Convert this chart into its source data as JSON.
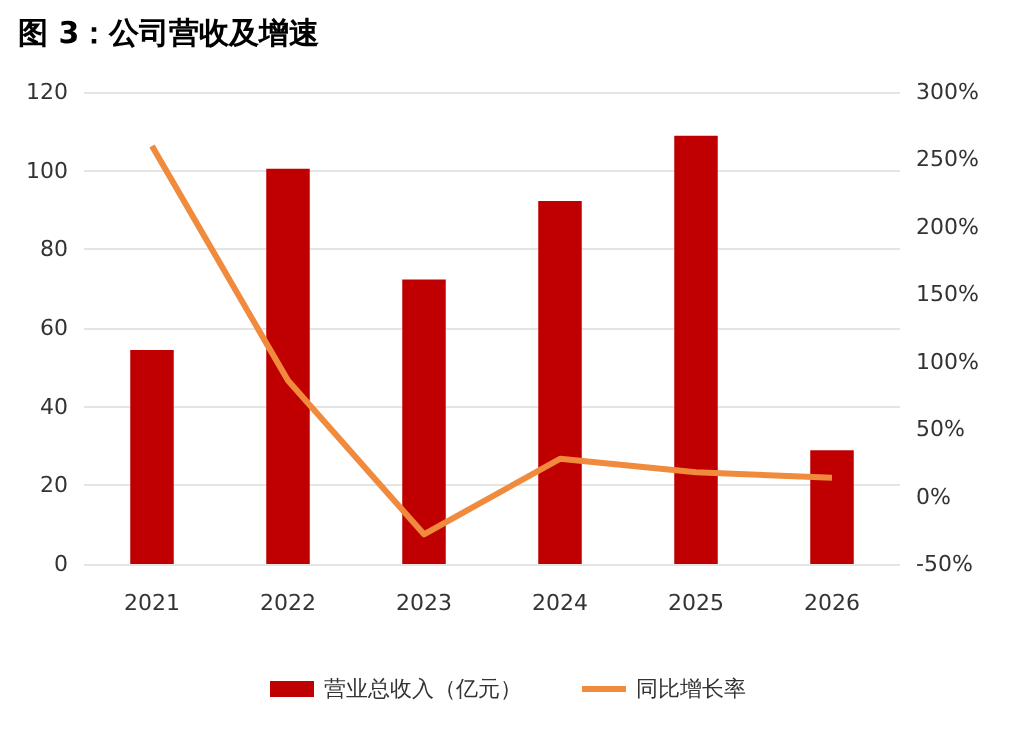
{
  "chart_data": {
    "type": "bar",
    "title": "图 3：公司营收及增速",
    "categories": [
      "2021",
      "2022",
      "2023",
      "2024",
      "2025",
      "2026"
    ],
    "series": [
      {
        "name": "营业总收入（亿元）",
        "color": "#c00000",
        "values": [
          54.4,
          100.5,
          72.3,
          92.3,
          108.9,
          28.9
        ]
      },
      {
        "name": "同比增长率",
        "type": "line",
        "axis": "y2",
        "color": "#f08a3c",
        "values": [
          260,
          86,
          -28,
          28,
          18,
          14
        ]
      }
    ],
    "ylim": [
      0,
      120
    ],
    "yticks": [
      0,
      20,
      40,
      60,
      80,
      100,
      120
    ],
    "y2lim": [
      -50,
      300
    ],
    "y2ticks": [
      {
        "value": -50,
        "label": "-50%"
      },
      {
        "value": 0,
        "label": "0%"
      },
      {
        "value": 50,
        "label": "50%"
      },
      {
        "value": 100,
        "label": "100%"
      },
      {
        "value": 150,
        "label": "150%"
      },
      {
        "value": 200,
        "label": "200%"
      },
      {
        "value": 250,
        "label": "250%"
      },
      {
        "value": 300,
        "label": "300%"
      }
    ],
    "grid": "y",
    "legend": "bottom",
    "marker": "none"
  }
}
